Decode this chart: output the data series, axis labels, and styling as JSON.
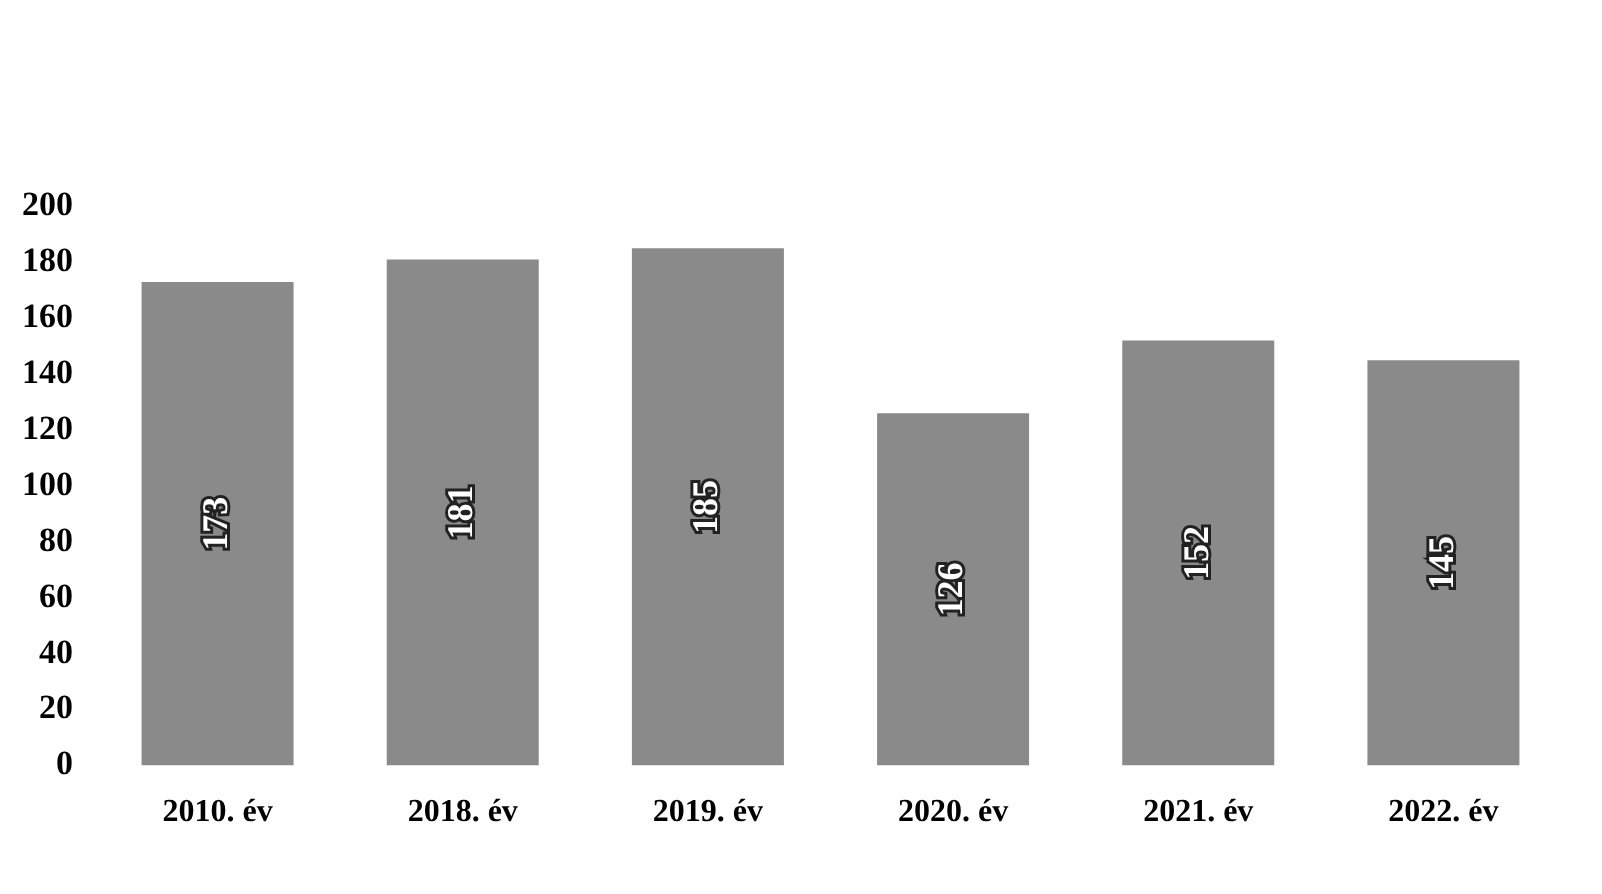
{
  "chart_data": {
    "type": "bar",
    "categories": [
      "2010. év",
      "2018. év",
      "2019. év",
      "2020. év",
      "2021. év",
      "2022. év"
    ],
    "values": [
      173,
      181,
      185,
      126,
      152,
      145
    ],
    "color": "#8a8a8a",
    "ylim": [
      0,
      200
    ],
    "yticks": [
      0,
      20,
      40,
      60,
      80,
      100,
      120,
      140,
      160,
      180,
      200
    ],
    "grid": false,
    "legend": false,
    "data_labels": true
  }
}
